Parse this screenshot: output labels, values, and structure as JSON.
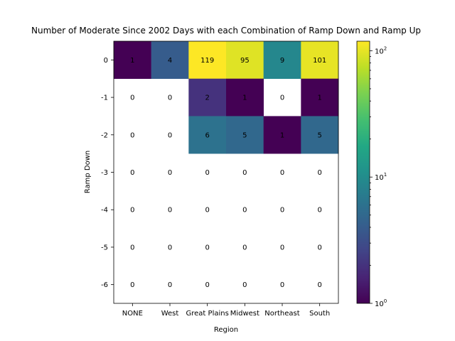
{
  "chart_data": {
    "type": "heatmap",
    "title": "Number of Moderate Since 2002 Days with each Combination of Ramp Down and Ramp Up",
    "xlabel": "Region",
    "ylabel": "Ramp Down",
    "x_categories": [
      "NONE",
      "West",
      "Great Plains",
      "Midwest",
      "Northeast",
      "South"
    ],
    "y_categories": [
      "0",
      "-1",
      "-2",
      "-3",
      "-4",
      "-5",
      "-6"
    ],
    "values": [
      [
        1,
        4,
        119,
        95,
        9,
        101
      ],
      [
        0,
        0,
        2,
        1,
        0,
        1
      ],
      [
        0,
        0,
        6,
        5,
        1,
        5
      ],
      [
        0,
        0,
        0,
        0,
        0,
        0
      ],
      [
        0,
        0,
        0,
        0,
        0,
        0
      ],
      [
        0,
        0,
        0,
        0,
        0,
        0
      ],
      [
        0,
        0,
        0,
        0,
        0,
        0
      ]
    ],
    "color_scale": "log",
    "colormap": "viridis",
    "colorbar": {
      "range": [
        1,
        119
      ],
      "major_ticks": [
        1,
        10,
        100
      ],
      "major_tick_labels": [
        "10^0",
        "10^1",
        "10^2"
      ]
    },
    "zero_cells": "blank",
    "grid": false,
    "legend": "none"
  }
}
